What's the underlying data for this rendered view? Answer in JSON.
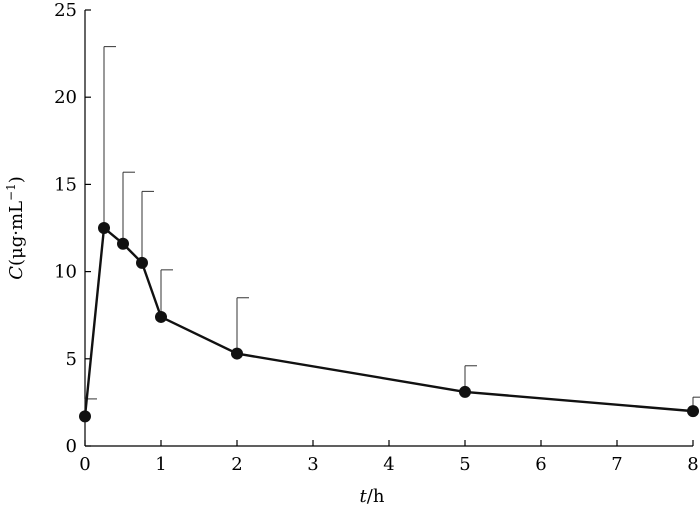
{
  "chart_data": {
    "type": "line",
    "title": "",
    "xlabel": {
      "italic": "t",
      "rest": "/h"
    },
    "ylabel": {
      "italic": "C",
      "rest": "(μg·mL",
      "sup": "−1",
      "close": ")"
    },
    "xlim": [
      0,
      8
    ],
    "ylim": [
      0,
      25
    ],
    "xticks": [
      "0",
      "1",
      "2",
      "3",
      "4",
      "5",
      "6",
      "7",
      "8"
    ],
    "yticks": [
      "0",
      "5",
      "10",
      "15",
      "20",
      "25"
    ],
    "grid": false,
    "series": [
      {
        "x": [
          0,
          0.25,
          0.5,
          0.75,
          1,
          2,
          5,
          8
        ],
        "y": [
          1.7,
          12.5,
          11.6,
          10.5,
          7.4,
          5.3,
          3.1,
          2.0
        ],
        "error_upper": [
          2.7,
          22.9,
          15.7,
          14.6,
          10.1,
          8.5,
          4.6,
          2.8
        ]
      }
    ]
  }
}
